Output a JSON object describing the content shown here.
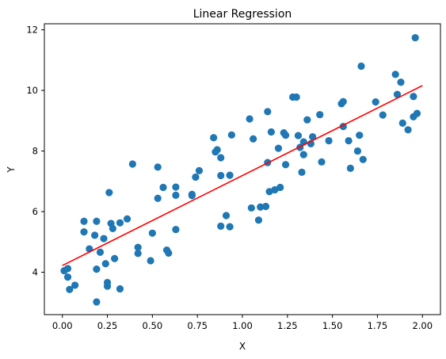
{
  "chart_data": {
    "type": "scatter",
    "title": "Linear Regression",
    "xlabel": "X",
    "ylabel": "Y",
    "xlim": [
      -0.1,
      2.1
    ],
    "ylim": [
      2.6,
      12.2
    ],
    "xticks": [
      0.0,
      0.25,
      0.5,
      0.75,
      1.0,
      1.25,
      1.5,
      1.75,
      2.0
    ],
    "xtick_labels": [
      "0.00",
      "0.25",
      "0.50",
      "0.75",
      "1.00",
      "1.25",
      "1.50",
      "1.75",
      "2.00"
    ],
    "yticks": [
      4,
      6,
      8,
      10,
      12
    ],
    "ytick_labels": [
      "4",
      "6",
      "8",
      "10",
      "12"
    ],
    "grid": false,
    "colors": {
      "points": "#1f77b4",
      "line": "#ff0000"
    },
    "series": [
      {
        "type": "scatter",
        "points": [
          [
            0.01,
            4.05
          ],
          [
            0.03,
            4.12
          ],
          [
            0.03,
            3.84
          ],
          [
            0.04,
            3.43
          ],
          [
            0.07,
            3.57
          ],
          [
            0.12,
            5.68
          ],
          [
            0.12,
            5.33
          ],
          [
            0.15,
            4.77
          ],
          [
            0.18,
            5.22
          ],
          [
            0.19,
            5.68
          ],
          [
            0.19,
            3.02
          ],
          [
            0.19,
            4.1
          ],
          [
            0.21,
            4.66
          ],
          [
            0.23,
            5.11
          ],
          [
            0.24,
            4.28
          ],
          [
            0.25,
            3.54
          ],
          [
            0.25,
            3.66
          ],
          [
            0.26,
            6.63
          ],
          [
            0.27,
            5.61
          ],
          [
            0.28,
            5.44
          ],
          [
            0.29,
            4.45
          ],
          [
            0.32,
            3.45
          ],
          [
            0.32,
            5.63
          ],
          [
            0.36,
            5.76
          ],
          [
            0.39,
            7.57
          ],
          [
            0.42,
            4.82
          ],
          [
            0.42,
            4.62
          ],
          [
            0.49,
            4.38
          ],
          [
            0.5,
            5.29
          ],
          [
            0.53,
            7.47
          ],
          [
            0.53,
            6.44
          ],
          [
            0.56,
            6.8
          ],
          [
            0.58,
            4.73
          ],
          [
            0.59,
            4.63
          ],
          [
            0.63,
            6.54
          ],
          [
            0.63,
            6.81
          ],
          [
            0.63,
            5.41
          ],
          [
            0.72,
            6.53
          ],
          [
            0.72,
            6.57
          ],
          [
            0.74,
            7.14
          ],
          [
            0.76,
            7.35
          ],
          [
            0.84,
            8.44
          ],
          [
            0.85,
            7.97
          ],
          [
            0.86,
            8.04
          ],
          [
            0.88,
            7.78
          ],
          [
            0.88,
            7.19
          ],
          [
            0.88,
            5.52
          ],
          [
            0.91,
            5.87
          ],
          [
            0.93,
            5.5
          ],
          [
            0.93,
            7.2
          ],
          [
            0.94,
            8.53
          ],
          [
            1.04,
            9.06
          ],
          [
            1.05,
            6.12
          ],
          [
            1.06,
            8.4
          ],
          [
            1.09,
            5.72
          ],
          [
            1.1,
            6.15
          ],
          [
            1.13,
            6.17
          ],
          [
            1.14,
            9.3
          ],
          [
            1.14,
            7.62
          ],
          [
            1.15,
            6.66
          ],
          [
            1.16,
            8.63
          ],
          [
            1.18,
            6.72
          ],
          [
            1.2,
            8.09
          ],
          [
            1.21,
            6.8
          ],
          [
            1.23,
            8.6
          ],
          [
            1.24,
            8.52
          ],
          [
            1.24,
            7.55
          ],
          [
            1.28,
            9.78
          ],
          [
            1.3,
            9.78
          ],
          [
            1.31,
            8.51
          ],
          [
            1.32,
            8.12
          ],
          [
            1.33,
            7.3
          ],
          [
            1.34,
            7.88
          ],
          [
            1.34,
            8.3
          ],
          [
            1.36,
            9.03
          ],
          [
            1.38,
            8.24
          ],
          [
            1.39,
            8.47
          ],
          [
            1.43,
            9.2
          ],
          [
            1.44,
            7.64
          ],
          [
            1.48,
            8.34
          ],
          [
            1.55,
            9.56
          ],
          [
            1.56,
            8.81
          ],
          [
            1.56,
            9.63
          ],
          [
            1.59,
            8.34
          ],
          [
            1.6,
            7.43
          ],
          [
            1.64,
            8.0
          ],
          [
            1.65,
            8.52
          ],
          [
            1.66,
            10.8
          ],
          [
            1.67,
            7.72
          ],
          [
            1.74,
            9.62
          ],
          [
            1.78,
            9.19
          ],
          [
            1.85,
            10.53
          ],
          [
            1.86,
            9.87
          ],
          [
            1.88,
            10.27
          ],
          [
            1.89,
            8.92
          ],
          [
            1.92,
            8.7
          ],
          [
            1.95,
            9.8
          ],
          [
            1.95,
            9.13
          ],
          [
            1.96,
            11.74
          ],
          [
            1.97,
            9.24
          ]
        ]
      },
      {
        "type": "line",
        "points": [
          [
            0.0,
            4.22
          ],
          [
            2.0,
            10.16
          ]
        ]
      }
    ]
  }
}
